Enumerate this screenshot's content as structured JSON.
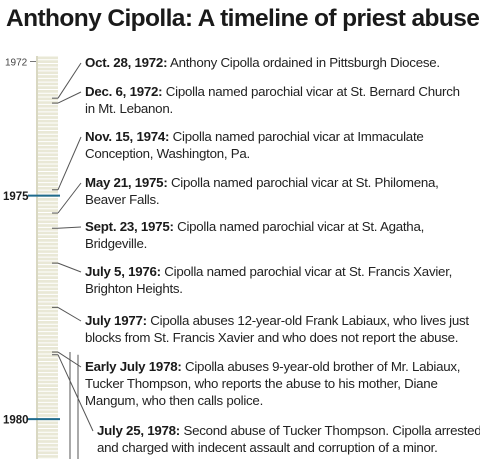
{
  "title": "Anthony Cipolla: A timeline of priest abuse",
  "colors": {
    "bar_light": "#e9e8d6",
    "bar_dark": "#d9d8c2",
    "tick": "#ffffff",
    "year_marker": "#1f6b8e",
    "connector": "#555555",
    "text": "#222222"
  },
  "year_labels": [
    {
      "label": "1972",
      "year": 1972.0,
      "style": "small"
    },
    {
      "label": "1975",
      "year": 1975.0,
      "style": "bold"
    },
    {
      "label": "1980",
      "year": 1980.0,
      "style": "bold"
    }
  ],
  "entries": [
    {
      "date": "Oct. 28, 1972:",
      "lines": [
        " Anthony Cipolla ordained in Pittsburgh Diocese."
      ],
      "year": 1972.82
    },
    {
      "date": "Dec. 6, 1972:",
      "lines": [
        " Cipolla named parochial vicar at St. Bernard Church",
        "in Mt. Lebanon."
      ],
      "year": 1972.93
    },
    {
      "date": "Nov. 15, 1974:",
      "lines": [
        " Cipolla named parochial vicar at Immaculate",
        "Conception, Washington, Pa."
      ],
      "year": 1974.87
    },
    {
      "date": "May 21, 1975:",
      "lines": [
        " Cipolla named parochial vicar at St. Philomena,",
        "Beaver Falls."
      ],
      "year": 1975.39
    },
    {
      "date": "Sept. 23, 1975:",
      "lines": [
        " Cipolla named parochial vicar at St. Agatha,",
        "Bridgeville."
      ],
      "year": 1975.73
    },
    {
      "date": "July 5, 1976:",
      "lines": [
        " Cipolla named parochial vicar at St. Francis Xavier,",
        "Brighton Heights."
      ],
      "year": 1976.51
    },
    {
      "date": "July 1977:",
      "lines": [
        " Cipolla abuses 12-year-old Frank Labiaux, who lives just",
        "blocks from St. Francis Xavier and who does not report the abuse."
      ],
      "year": 1977.5
    },
    {
      "date": "Early July 1978:",
      "lines": [
        " Cipolla abuses 9-year-old brother of Mr. Labiaux,",
        "Tucker Thompson, who reports the abuse to his mother, Diane",
        "Mangum, who then calls police."
      ],
      "year": 1978.5
    },
    {
      "date": "July 25, 1978:",
      "lines": [
        " Second abuse of Tucker Thompson. Cipolla arrested",
        "and charged with indecent assault and corruption of a minor."
      ],
      "year": 1978.56
    }
  ]
}
